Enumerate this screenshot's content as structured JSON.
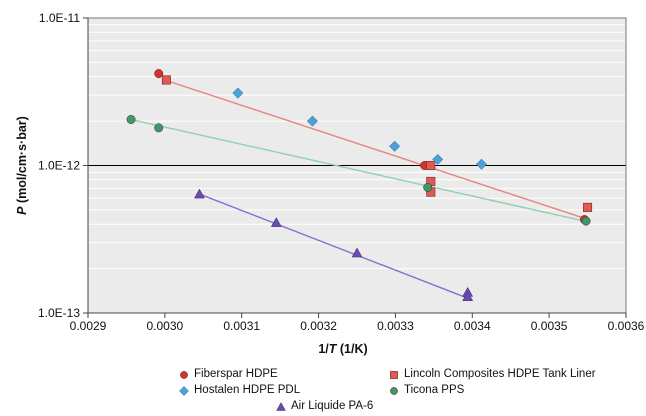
{
  "chart_data": {
    "type": "scatter",
    "title": "",
    "xlabel": "1/T (1/K)",
    "xlabel_prefix": "1/",
    "xlabel_italic": "T",
    "xlabel_suffix": " (1/K)",
    "ylabel": "P (mol/cm·s·bar)",
    "ylabel_italic": "P",
    "ylabel_rest": "(mol/cm·s·bar)",
    "xlim": [
      0.0029,
      0.0036
    ],
    "ylim": [
      1e-13,
      1e-11
    ],
    "yscale": "log",
    "grid": true,
    "xticks": [
      0.0029,
      0.003,
      0.0031,
      0.0032,
      0.0033,
      0.0034,
      0.0035,
      0.0036
    ],
    "xtick_labels": [
      "0.0029",
      "0.0030",
      "0.0031",
      "0.0032",
      "0.0033",
      "0.0034",
      "0.0035",
      "0.0036"
    ],
    "yticks": [
      1e-13,
      1e-12,
      1e-11
    ],
    "ytick_labels": [
      "1.0E-13",
      "1.0E-12",
      "1.0E-11"
    ],
    "legend_position": "bottom",
    "series": [
      {
        "name": "Fiberspar HDPE",
        "marker": "circle",
        "color": "#d0342c",
        "x": [
          0.002992,
          0.003338,
          0.003546
        ],
        "y": [
          4.2e-12,
          1e-12,
          4.3e-13
        ],
        "trend": {
          "x": [
            0.003,
            0.003545
          ],
          "y": [
            3.8e-12,
            4.4e-13
          ],
          "color": "#e8837d"
        }
      },
      {
        "name": "Lincoln Composites HDPE Tank Liner",
        "marker": "square",
        "color": "#e05a55",
        "x": [
          0.003002,
          0.003346,
          0.003346,
          0.003346,
          0.00355
        ],
        "y": [
          3.8e-12,
          1e-12,
          7.8e-13,
          6.6e-13,
          5.2e-13
        ],
        "trend": null
      },
      {
        "name": "Hostalen HDPE PDL",
        "marker": "diamond",
        "color": "#4aa3d8",
        "x": [
          0.003095,
          0.003192,
          0.003299,
          0.003355,
          0.003412
        ],
        "y": [
          3.1e-12,
          2e-12,
          1.35e-12,
          1.1e-12,
          1.02e-12
        ],
        "trend": null
      },
      {
        "name": "Ticona PPS",
        "marker": "circle",
        "color": "#3a9a6a",
        "x": [
          0.002956,
          0.002992,
          0.003342,
          0.003548
        ],
        "y": [
          2.05e-12,
          1.8e-12,
          7.1e-13,
          4.2e-13
        ],
        "trend": {
          "x": [
            0.002956,
            0.00355
          ],
          "y": [
            2.05e-12,
            4.15e-13
          ],
          "color": "#8ed0b4"
        }
      },
      {
        "name": "Air Liquide PA-6",
        "marker": "triangle",
        "color": "#6a4bb0",
        "x": [
          0.003045,
          0.003145,
          0.00325,
          0.003394,
          0.003394
        ],
        "y": [
          6.4e-13,
          4.1e-13,
          2.55e-13,
          1.38e-13,
          1.29e-13
        ],
        "trend": {
          "x": [
            0.003045,
            0.003394
          ],
          "y": [
            6.4e-13,
            1.26e-13
          ],
          "color": "#8a6fd0"
        }
      }
    ]
  }
}
